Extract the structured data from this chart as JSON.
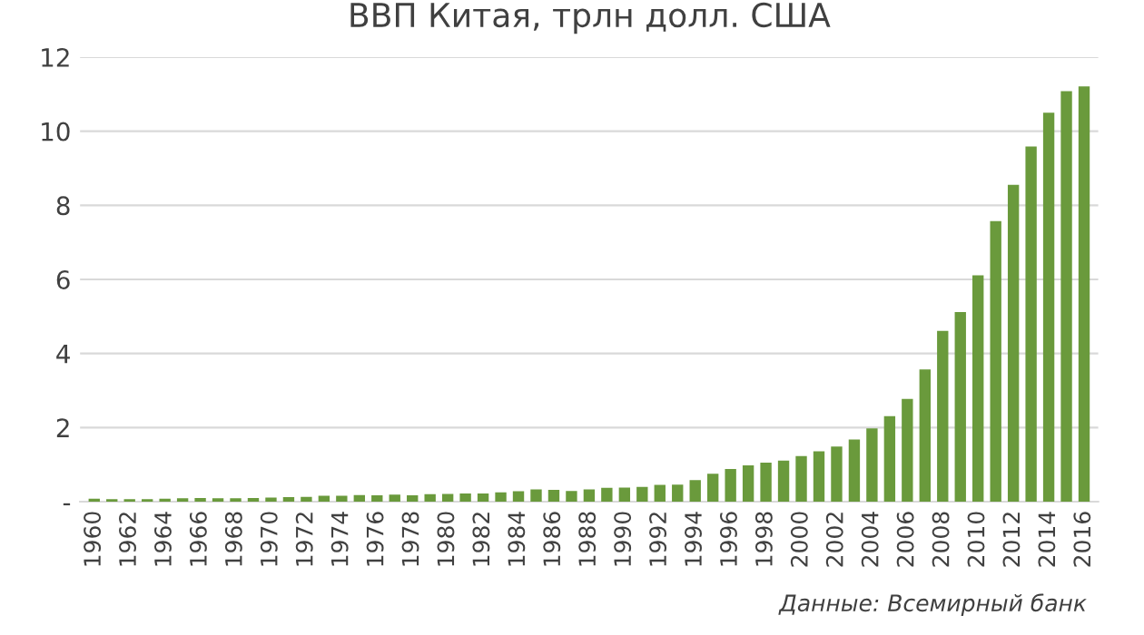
{
  "chart_data": {
    "type": "bar",
    "title": "ВВП Китая, трлн долл. США",
    "categories": [
      "1960",
      null,
      "1962",
      null,
      "1964",
      null,
      "1966",
      null,
      "1968",
      null,
      "1970",
      null,
      "1972",
      null,
      "1974",
      null,
      "1976",
      null,
      "1978",
      null,
      "1980",
      null,
      "1982",
      null,
      "1984",
      null,
      "1986",
      null,
      "1988",
      null,
      "1990",
      null,
      "1992",
      null,
      "1994",
      null,
      "1996",
      null,
      "1998",
      null,
      "2000",
      null,
      "2002",
      null,
      "2004",
      null,
      "2006",
      null,
      "2008",
      null,
      "2010",
      null,
      "2012",
      null,
      "2014",
      null,
      "2016"
    ],
    "values": [
      0.06,
      0.05,
      0.05,
      0.05,
      0.06,
      0.07,
      0.08,
      0.07,
      0.07,
      0.08,
      0.09,
      0.1,
      0.11,
      0.14,
      0.14,
      0.16,
      0.15,
      0.17,
      0.15,
      0.18,
      0.19,
      0.2,
      0.2,
      0.23,
      0.26,
      0.31,
      0.3,
      0.27,
      0.31,
      0.35,
      0.36,
      0.38,
      0.43,
      0.44,
      0.56,
      0.73,
      0.86,
      0.96,
      1.03,
      1.09,
      1.21,
      1.34,
      1.47,
      1.66,
      1.96,
      2.29,
      2.75,
      3.55,
      4.59,
      5.1,
      6.09,
      7.55,
      8.53,
      9.57,
      10.48,
      11.06,
      11.19
    ],
    "color": "#6a9a3c",
    "ylim": [
      0,
      12
    ],
    "yticks": [
      {
        "value": 0,
        "label": "-"
      },
      2,
      4,
      6,
      8,
      10,
      12
    ],
    "grid": "y",
    "annotations": [
      "Данные: Всемирный банк"
    ]
  }
}
